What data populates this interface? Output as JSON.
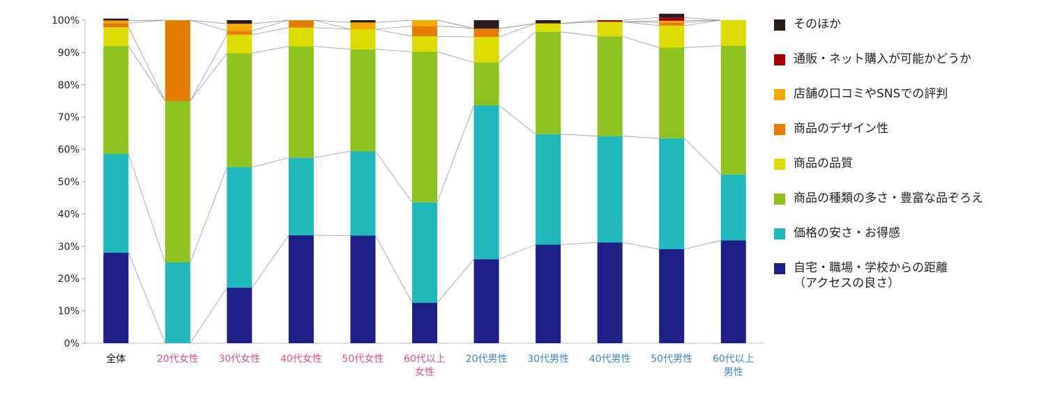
{
  "chart_data": {
    "type": "bar",
    "stacked": true,
    "ylim": [
      0,
      100
    ],
    "yticks": [
      "0%",
      "10%",
      "20%",
      "30%",
      "40%",
      "50%",
      "60%",
      "70%",
      "80%",
      "90%",
      "100%"
    ],
    "categories": [
      {
        "label": "全体",
        "color": "#111111"
      },
      {
        "label": "20代女性",
        "color": "#d94f8c"
      },
      {
        "label": "30代女性",
        "color": "#d94f8c"
      },
      {
        "label": "40代女性",
        "color": "#d94f8c"
      },
      {
        "label": "50代女性",
        "color": "#d94f8c"
      },
      {
        "label": "60代以上\n女性",
        "color": "#d94f8c"
      },
      {
        "label": "20代男性",
        "color": "#3b86c6"
      },
      {
        "label": "30代男性",
        "color": "#3b86c6"
      },
      {
        "label": "40代男性",
        "color": "#3b86c6"
      },
      {
        "label": "50代男性",
        "color": "#3b86c6"
      },
      {
        "label": "60代以上\n男性",
        "color": "#3b86c6"
      }
    ],
    "series": [
      {
        "name": "自宅・職場・学校からの距離\n（アクセスの良さ）",
        "color": "#1e1f86",
        "values": [
          28,
          0,
          17.2,
          33.4,
          33.3,
          12.5,
          26,
          30.5,
          31.2,
          29.1,
          31.8
        ]
      },
      {
        "name": "価格の安さ・お得感",
        "color": "#21b8bd",
        "values": [
          30.6,
          25,
          37.3,
          24,
          26.1,
          31.1,
          47.6,
          34.2,
          32.9,
          34.3,
          20.4
        ]
      },
      {
        "name": "商品の種類の多さ・豊富な品ぞろえ",
        "color": "#8dc220",
        "values": [
          33.4,
          50,
          35.3,
          34.5,
          31.6,
          46.6,
          13.3,
          31.7,
          30.9,
          28.1,
          39.9
        ]
      },
      {
        "name": "商品の品質",
        "color": "#dcdc00",
        "values": [
          5.8,
          0,
          5.7,
          5.8,
          6.2,
          4.8,
          7.9,
          2.6,
          4.5,
          6.8,
          7.9
        ]
      },
      {
        "name": "商品のデザイン性",
        "color": "#e47c00",
        "values": [
          1.3,
          25,
          1.2,
          2.3,
          0,
          3.2,
          2.6,
          0,
          0,
          1,
          0
        ]
      },
      {
        "name": "店舗の口コミやSNSでの評判",
        "color": "#f5a800",
        "values": [
          0.8,
          0,
          2.2,
          0,
          2.1,
          1.8,
          0,
          0,
          0,
          0.5,
          0
        ]
      },
      {
        "name": "通販・ネット購入が可能かどうか",
        "color": "#a00000",
        "values": [
          0,
          0,
          0,
          0,
          0,
          0,
          0,
          0,
          0.5,
          1,
          0
        ]
      },
      {
        "name": "そのほか",
        "color": "#2a1c18",
        "values": [
          0.6,
          0,
          1.1,
          0,
          0.7,
          0,
          2.6,
          1,
          0,
          1.2,
          0
        ]
      }
    ]
  }
}
